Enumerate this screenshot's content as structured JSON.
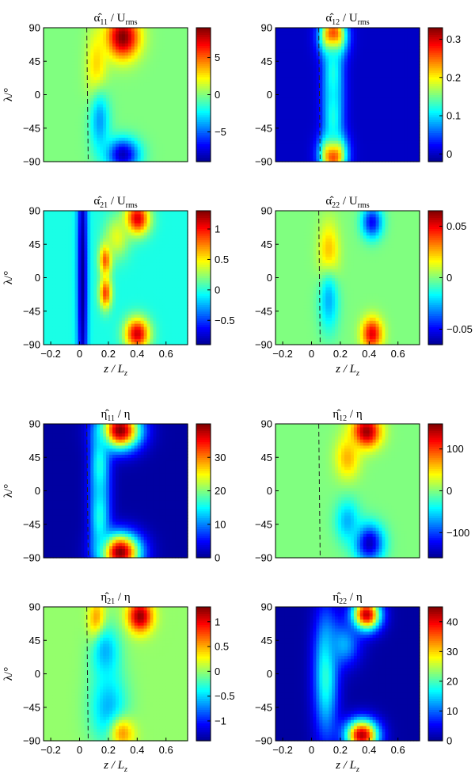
{
  "colormap": [
    "#00008f",
    "#0000ff",
    "#0080ff",
    "#00ffff",
    "#80ff80",
    "#ffff00",
    "#ff8000",
    "#ff0000",
    "#800000"
  ],
  "chart_data": [
    {
      "type": "heatmap",
      "title": {
        "base": "α̂",
        "sub": "11",
        "rest": " / U",
        "rest_sub": "rms"
      },
      "xlabel": "",
      "ylabel": "λ/°",
      "xlim": [
        -0.25,
        0.75
      ],
      "ylim": [
        -90,
        90
      ],
      "xticks": [],
      "xtick_labels": [],
      "yticks": [
        -90,
        -45,
        0,
        45,
        90
      ],
      "ytick_labels": [
        "−90",
        "−45",
        "0",
        "45",
        "90"
      ],
      "colorbar": {
        "min": -9,
        "max": 9,
        "ticks": [
          -5,
          0,
          5
        ],
        "tick_labels": [
          "−5",
          "0",
          "5"
        ]
      },
      "background": 0.5,
      "dashed_line_x": 0.05,
      "blobs": [
        {
          "x": 0.3,
          "y": 78,
          "sx": 0.08,
          "sy": 20,
          "value": 1.0
        },
        {
          "x": 0.12,
          "y": 35,
          "sx": 0.05,
          "sy": 35,
          "value": 0.68
        },
        {
          "x": 0.3,
          "y": -80,
          "sx": 0.08,
          "sy": 15,
          "value": 0.05
        },
        {
          "x": 0.14,
          "y": -35,
          "sx": 0.05,
          "sy": 30,
          "value": 0.28
        }
      ]
    },
    {
      "type": "heatmap",
      "title": {
        "base": "α̂",
        "sub": "12",
        "rest": " / U",
        "rest_sub": "rms"
      },
      "xlabel": "",
      "ylabel": "",
      "xlim": [
        -0.25,
        0.75
      ],
      "ylim": [
        -90,
        90
      ],
      "xticks": [],
      "xtick_labels": [],
      "yticks": [
        -90,
        -45,
        0,
        45,
        90
      ],
      "ytick_labels": [
        "−90",
        "−45",
        "0",
        "45",
        "90"
      ],
      "colorbar": {
        "min": -0.02,
        "max": 0.33,
        "ticks": [
          0,
          0.1,
          0.2,
          0.3
        ],
        "tick_labels": [
          "0",
          "0.1",
          "0.2",
          "0.3"
        ]
      },
      "background": 0.06,
      "dashed_line_x": 0.05,
      "blobs": [
        {
          "x": 0.15,
          "y": 80,
          "sx": 0.06,
          "sy": 18,
          "value": 1.0
        },
        {
          "x": 0.15,
          "y": -80,
          "sx": 0.06,
          "sy": 18,
          "value": 1.0
        },
        {
          "x": 0.15,
          "y": 30,
          "sx": 0.05,
          "sy": 35,
          "value": 0.4
        },
        {
          "x": 0.15,
          "y": -30,
          "sx": 0.05,
          "sy": 35,
          "value": 0.4
        }
      ]
    },
    {
      "type": "heatmap",
      "title": {
        "base": "α̂",
        "sub": "21",
        "rest": " / U",
        "rest_sub": "rms"
      },
      "xlabel": "",
      "ylabel": "λ/°",
      "xlim": [
        -0.25,
        0.75
      ],
      "ylim": [
        -90,
        90
      ],
      "xticks": [
        -0.2,
        0,
        0.2,
        0.4,
        0.6
      ],
      "xtick_labels": [
        "−0.2",
        "0",
        "0.2",
        "0.4",
        "0.6"
      ],
      "yticks": [
        -90,
        -45,
        0,
        45,
        90
      ],
      "ytick_labels": [
        "−90",
        "−45",
        "0",
        "45",
        "90"
      ],
      "colorbar": {
        "min": -0.9,
        "max": 1.3,
        "ticks": [
          -0.5,
          0,
          0.5,
          1
        ],
        "tick_labels": [
          "−0.5",
          "0",
          "0.5",
          "1"
        ]
      },
      "background": 0.4,
      "dashed_line_x": null,
      "blobs": [
        {
          "x": 0.02,
          "y": 0,
          "sx": 0.025,
          "sy": 150,
          "value": 0.0
        },
        {
          "x": 0.18,
          "y": 25,
          "sx": 0.03,
          "sy": 15,
          "value": 0.82
        },
        {
          "x": 0.18,
          "y": -20,
          "sx": 0.03,
          "sy": 15,
          "value": 0.82
        },
        {
          "x": 0.4,
          "y": 80,
          "sx": 0.06,
          "sy": 15,
          "value": 0.92
        },
        {
          "x": 0.4,
          "y": -75,
          "sx": 0.06,
          "sy": 15,
          "value": 0.92
        },
        {
          "x": 0.26,
          "y": 55,
          "sx": 0.06,
          "sy": 20,
          "value": 0.6
        }
      ]
    },
    {
      "type": "heatmap",
      "title": {
        "base": "α̂",
        "sub": "22",
        "rest": " / U",
        "rest_sub": "rms"
      },
      "xlabel": "",
      "ylabel": "",
      "xlim": [
        -0.25,
        0.75
      ],
      "ylim": [
        -90,
        90
      ],
      "xticks": [
        -0.2,
        0,
        0.2,
        0.4,
        0.6
      ],
      "xtick_labels": [
        "−0.2",
        "0",
        "0.2",
        "0.4",
        "0.6"
      ],
      "yticks": [
        -90,
        -45,
        0,
        45,
        90
      ],
      "ytick_labels": [
        "−90",
        "−45",
        "0",
        "45",
        "90"
      ],
      "colorbar": {
        "min": -0.065,
        "max": 0.065,
        "ticks": [
          -0.05,
          0,
          0.05
        ],
        "tick_labels": [
          "−0.05",
          "0",
          "0.05"
        ]
      },
      "background": 0.5,
      "dashed_line_x": 0.05,
      "blobs": [
        {
          "x": 0.12,
          "y": 30,
          "sx": 0.05,
          "sy": 30,
          "value": 0.72
        },
        {
          "x": 0.12,
          "y": -30,
          "sx": 0.05,
          "sy": 30,
          "value": 0.3
        },
        {
          "x": 0.42,
          "y": 75,
          "sx": 0.05,
          "sy": 15,
          "value": 0.12
        },
        {
          "x": 0.42,
          "y": -75,
          "sx": 0.05,
          "sy": 15,
          "value": 0.9
        }
      ]
    },
    {
      "type": "heatmap",
      "title": {
        "base": "η̂",
        "sub": "11",
        "rest": " / η",
        "rest_sub": ""
      },
      "xlabel": "",
      "ylabel": "λ/°",
      "xlim": [
        -0.25,
        0.75
      ],
      "ylim": [
        -90,
        90
      ],
      "xticks": [],
      "xtick_labels": [],
      "yticks": [
        -90,
        -45,
        0,
        45,
        90
      ],
      "ytick_labels": [
        "−90",
        "−45",
        "0",
        "45",
        "90"
      ],
      "colorbar": {
        "min": 0,
        "max": 40,
        "ticks": [
          0,
          10,
          20,
          30
        ],
        "tick_labels": [
          "0",
          "10",
          "20",
          "30"
        ]
      },
      "background": 0.02,
      "dashed_line_x": 0.05,
      "blobs": [
        {
          "x": 0.28,
          "y": 82,
          "sx": 0.1,
          "sy": 18,
          "value": 1.0
        },
        {
          "x": 0.28,
          "y": -82,
          "sx": 0.1,
          "sy": 18,
          "value": 1.0
        },
        {
          "x": 0.14,
          "y": 35,
          "sx": 0.05,
          "sy": 35,
          "value": 0.4
        },
        {
          "x": 0.14,
          "y": -35,
          "sx": 0.05,
          "sy": 35,
          "value": 0.4
        }
      ]
    },
    {
      "type": "heatmap",
      "title": {
        "base": "η̂",
        "sub": "12",
        "rest": " / η",
        "rest_sub": ""
      },
      "xlabel": "",
      "ylabel": "",
      "xlim": [
        -0.25,
        0.75
      ],
      "ylim": [
        -90,
        90
      ],
      "xticks": [],
      "xtick_labels": [],
      "yticks": [
        -90,
        -45,
        0,
        45,
        90
      ],
      "ytick_labels": [
        "−90",
        "−45",
        "0",
        "45",
        "90"
      ],
      "colorbar": {
        "min": -160,
        "max": 160,
        "ticks": [
          -100,
          0,
          100
        ],
        "tick_labels": [
          "−100",
          "0",
          "100"
        ]
      },
      "background": 0.5,
      "dashed_line_x": 0.05,
      "blobs": [
        {
          "x": 0.38,
          "y": 80,
          "sx": 0.07,
          "sy": 15,
          "value": 0.98
        },
        {
          "x": 0.4,
          "y": -70,
          "sx": 0.07,
          "sy": 18,
          "value": 0.05
        },
        {
          "x": 0.25,
          "y": 45,
          "sx": 0.06,
          "sy": 20,
          "value": 0.7
        },
        {
          "x": 0.25,
          "y": -40,
          "sx": 0.06,
          "sy": 20,
          "value": 0.3
        }
      ]
    },
    {
      "type": "heatmap",
      "title": {
        "base": "η̂",
        "sub": "21",
        "rest": " / η",
        "rest_sub": ""
      },
      "xlabel": "",
      "ylabel": "λ/°",
      "xlim": [
        -0.25,
        0.75
      ],
      "ylim": [
        -90,
        90
      ],
      "xticks": [
        -0.2,
        0,
        0.2,
        0.4,
        0.6
      ],
      "xtick_labels": [
        "−0.2",
        "0",
        "0.2",
        "0.4",
        "0.6"
      ],
      "yticks": [
        -90,
        -45,
        0,
        45,
        90
      ],
      "ytick_labels": [
        "−90",
        "−45",
        "0",
        "45",
        "90"
      ],
      "colorbar": {
        "min": -1.4,
        "max": 1.3,
        "ticks": [
          -1,
          -0.5,
          0,
          0.5,
          1
        ],
        "tick_labels": [
          "−1",
          "−0.5",
          "0",
          "0.5",
          "1"
        ]
      },
      "background": 0.52,
      "dashed_line_x": 0.05,
      "blobs": [
        {
          "x": 0.42,
          "y": 78,
          "sx": 0.06,
          "sy": 15,
          "value": 0.98
        },
        {
          "x": 0.12,
          "y": 70,
          "sx": 0.04,
          "sy": 20,
          "value": 0.78
        },
        {
          "x": 0.18,
          "y": 30,
          "sx": 0.07,
          "sy": 25,
          "value": 0.3
        },
        {
          "x": 0.2,
          "y": -45,
          "sx": 0.09,
          "sy": 35,
          "value": 0.3
        },
        {
          "x": 0.3,
          "y": -80,
          "sx": 0.06,
          "sy": 15,
          "value": 0.72
        }
      ]
    },
    {
      "type": "heatmap",
      "title": {
        "base": "η̂",
        "sub": "22",
        "rest": " / η",
        "rest_sub": ""
      },
      "xlabel": "",
      "ylabel": "",
      "xlim": [
        -0.25,
        0.75
      ],
      "ylim": [
        -90,
        90
      ],
      "xticks": [
        -0.2,
        0,
        0.2,
        0.4,
        0.6
      ],
      "xtick_labels": [
        "−0.2",
        "0",
        "0.2",
        "0.4",
        "0.6"
      ],
      "yticks": [
        -90,
        -45,
        0,
        45,
        90
      ],
      "ytick_labels": [
        "−90",
        "−45",
        "0",
        "45",
        "90"
      ],
      "colorbar": {
        "min": 0,
        "max": 45,
        "ticks": [
          0,
          10,
          20,
          30,
          40
        ],
        "tick_labels": [
          "0",
          "10",
          "20",
          "30",
          "40"
        ]
      },
      "background": 0.02,
      "dashed_line_x": null,
      "blobs": [
        {
          "x": 0.1,
          "y": 0,
          "sx": 0.06,
          "sy": 60,
          "value": 0.42
        },
        {
          "x": 0.38,
          "y": 80,
          "sx": 0.07,
          "sy": 15,
          "value": 0.95
        },
        {
          "x": 0.35,
          "y": -82,
          "sx": 0.08,
          "sy": 15,
          "value": 0.95
        },
        {
          "x": 0.22,
          "y": 40,
          "sx": 0.08,
          "sy": 20,
          "value": 0.3
        }
      ]
    }
  ],
  "shared_xlabel": {
    "base": "z / L",
    "sub": "z"
  }
}
